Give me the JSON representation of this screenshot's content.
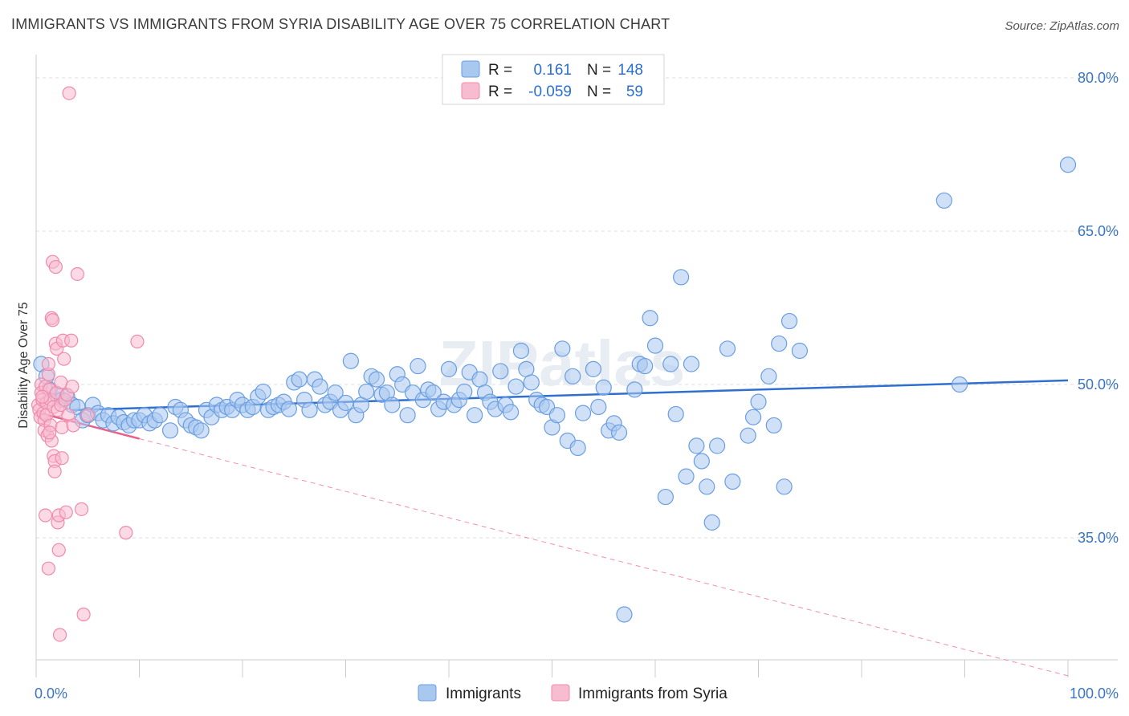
{
  "title": "IMMIGRANTS VS IMMIGRANTS FROM SYRIA DISABILITY AGE OVER 75 CORRELATION CHART",
  "source": "Source: ZipAtlas.com",
  "watermark": "ZIPatlas",
  "colors": {
    "blue": "#6a9ee0",
    "blue_fill": "#a9c8f0",
    "blue_line": "#2f6fd0",
    "pink": "#f08aaa",
    "pink_fill": "#f8bcd0",
    "pink_line": "#e8608c",
    "axis_text": "#3a75c4",
    "grid": "#dddddd"
  },
  "legend": {
    "rows": [
      {
        "r_label": "R =",
        "r_value": "0.161",
        "n_label": "N =",
        "n_value": "148"
      },
      {
        "r_label": "R =",
        "r_value": "-0.059",
        "n_label": "N =",
        "n_value": "59"
      }
    ]
  },
  "bottom_legend": [
    "Immigrants",
    "Immigrants from Syria"
  ],
  "chart_data": {
    "type": "scatter",
    "title": "IMMIGRANTS VS IMMIGRANTS FROM SYRIA DISABILITY AGE OVER 75 CORRELATION CHART",
    "xlabel": "",
    "ylabel": "Disability Age Over 75",
    "xlim": [
      0,
      100
    ],
    "ylim": [
      20,
      82
    ],
    "x_tick_labels": [
      "0.0%",
      "100.0%"
    ],
    "y_ticks": [
      35,
      50,
      65,
      80
    ],
    "y_tick_labels": [
      "35.0%",
      "50.0%",
      "65.0%",
      "80.0%"
    ],
    "grid": true,
    "legend_position": "top-center",
    "series": [
      {
        "name": "Immigrants",
        "r": 0.161,
        "n": 148,
        "trend": [
          [
            0,
            47.3
          ],
          [
            100,
            50.4
          ]
        ],
        "points": [
          [
            0.5,
            52
          ],
          [
            1,
            50.8
          ],
          [
            1.3,
            49.5
          ],
          [
            2,
            49
          ],
          [
            2.5,
            48.5
          ],
          [
            3,
            48.8
          ],
          [
            3.5,
            48
          ],
          [
            4,
            47.8
          ],
          [
            4.5,
            46.5
          ],
          [
            5,
            47
          ],
          [
            5.5,
            48
          ],
          [
            6,
            47.2
          ],
          [
            6.5,
            46.5
          ],
          [
            7,
            47
          ],
          [
            7.5,
            46.2
          ],
          [
            8,
            46.8
          ],
          [
            8.5,
            46.3
          ],
          [
            9,
            46
          ],
          [
            9.5,
            46.5
          ],
          [
            10,
            46.5
          ],
          [
            10.5,
            47
          ],
          [
            11,
            46.2
          ],
          [
            11.5,
            46.5
          ],
          [
            12,
            47
          ],
          [
            13,
            45.5
          ],
          [
            13.5,
            47.8
          ],
          [
            14,
            47.5
          ],
          [
            14.5,
            46.5
          ],
          [
            15,
            46
          ],
          [
            15.5,
            45.8
          ],
          [
            16,
            45.5
          ],
          [
            16.5,
            47.5
          ],
          [
            17,
            46.8
          ],
          [
            17.5,
            48
          ],
          [
            18,
            47.5
          ],
          [
            18.5,
            47.8
          ],
          [
            19,
            47.5
          ],
          [
            19.5,
            48.5
          ],
          [
            20,
            48
          ],
          [
            20.5,
            47.5
          ],
          [
            21,
            47.8
          ],
          [
            21.5,
            48.8
          ],
          [
            22,
            49.3
          ],
          [
            22.5,
            47.5
          ],
          [
            23,
            47.8
          ],
          [
            23.5,
            48
          ],
          [
            24,
            48.3
          ],
          [
            24.5,
            47.6
          ],
          [
            25,
            50.2
          ],
          [
            25.5,
            50.5
          ],
          [
            26,
            48.5
          ],
          [
            26.5,
            47.5
          ],
          [
            27,
            50.5
          ],
          [
            27.5,
            49.8
          ],
          [
            28,
            48
          ],
          [
            28.5,
            48.3
          ],
          [
            29,
            49.2
          ],
          [
            29.5,
            47.5
          ],
          [
            30,
            48.2
          ],
          [
            30.5,
            52.3
          ],
          [
            31,
            47
          ],
          [
            31.5,
            48
          ],
          [
            32,
            49.3
          ],
          [
            32.5,
            50.8
          ],
          [
            33,
            50.5
          ],
          [
            33.5,
            49
          ],
          [
            34,
            49.2
          ],
          [
            34.5,
            48
          ],
          [
            35,
            51
          ],
          [
            35.5,
            50
          ],
          [
            36,
            47
          ],
          [
            36.5,
            49.2
          ],
          [
            37,
            51.8
          ],
          [
            37.5,
            48.5
          ],
          [
            38,
            49.5
          ],
          [
            38.5,
            49.2
          ],
          [
            39,
            47.6
          ],
          [
            39.5,
            48.3
          ],
          [
            40,
            51.5
          ],
          [
            40.5,
            48
          ],
          [
            41,
            48.5
          ],
          [
            41.5,
            49.3
          ],
          [
            42,
            51.2
          ],
          [
            42.5,
            47
          ],
          [
            43,
            50.5
          ],
          [
            43.5,
            49.2
          ],
          [
            44,
            48.3
          ],
          [
            44.5,
            47.6
          ],
          [
            45,
            51.3
          ],
          [
            45.5,
            48
          ],
          [
            46,
            47.3
          ],
          [
            46.5,
            49.8
          ],
          [
            47,
            53.3
          ],
          [
            47.5,
            51.5
          ],
          [
            48,
            50.2
          ],
          [
            48.5,
            48.5
          ],
          [
            49,
            48
          ],
          [
            49.5,
            47.8
          ],
          [
            50,
            45.8
          ],
          [
            50.5,
            47
          ],
          [
            51,
            53.5
          ],
          [
            51.5,
            44.5
          ],
          [
            52,
            50.8
          ],
          [
            52.5,
            43.8
          ],
          [
            53,
            47.2
          ],
          [
            54,
            51.5
          ],
          [
            54.5,
            47.8
          ],
          [
            55,
            49.7
          ],
          [
            55.5,
            45.5
          ],
          [
            56,
            46.2
          ],
          [
            56.5,
            45.3
          ],
          [
            57,
            27.5
          ],
          [
            58,
            49.5
          ],
          [
            58.5,
            52
          ],
          [
            59,
            51.8
          ],
          [
            59.5,
            56.5
          ],
          [
            60,
            53.8
          ],
          [
            61,
            39
          ],
          [
            61.5,
            52
          ],
          [
            62,
            47.1
          ],
          [
            62.5,
            60.5
          ],
          [
            63,
            41
          ],
          [
            63.5,
            52
          ],
          [
            64,
            44
          ],
          [
            64.5,
            42.5
          ],
          [
            65,
            40
          ],
          [
            65.5,
            36.5
          ],
          [
            66,
            44
          ],
          [
            67,
            53.5
          ],
          [
            67.5,
            40.5
          ],
          [
            69,
            45
          ],
          [
            69.5,
            46.8
          ],
          [
            70,
            48.3
          ],
          [
            71,
            50.8
          ],
          [
            71.5,
            46
          ],
          [
            72,
            54
          ],
          [
            72.5,
            40
          ],
          [
            73,
            56.2
          ],
          [
            74,
            53.3
          ],
          [
            88,
            68
          ],
          [
            89.5,
            50
          ],
          [
            100,
            71.5
          ]
        ]
      },
      {
        "name": "Immigrants from Syria",
        "r": -0.059,
        "n": 59,
        "trend": [
          [
            0,
            47.3
          ],
          [
            10,
            44.7
          ]
        ],
        "trend_ext": [
          [
            10,
            44.7
          ],
          [
            100,
            21.5
          ]
        ],
        "points": [
          [
            0.2,
            48
          ],
          [
            0.3,
            47.5
          ],
          [
            0.4,
            46.8
          ],
          [
            0.5,
            50
          ],
          [
            0.5,
            49.2
          ],
          [
            0.6,
            48.5
          ],
          [
            0.7,
            47.2
          ],
          [
            0.8,
            46.5
          ],
          [
            0.8,
            45.5
          ],
          [
            0.9,
            49.8
          ],
          [
            1,
            48.2
          ],
          [
            1,
            47
          ],
          [
            1.1,
            45
          ],
          [
            1.2,
            51
          ],
          [
            1.2,
            52
          ],
          [
            1.3,
            49.5
          ],
          [
            1.4,
            48.5
          ],
          [
            1.4,
            46
          ],
          [
            1.5,
            44.5
          ],
          [
            1.5,
            56.5
          ],
          [
            1.6,
            62
          ],
          [
            1.6,
            56.3
          ],
          [
            1.7,
            47.8
          ],
          [
            1.7,
            43
          ],
          [
            1.8,
            42.5
          ],
          [
            1.8,
            41.5
          ],
          [
            1.9,
            61.5
          ],
          [
            1.9,
            54
          ],
          [
            2,
            53.5
          ],
          [
            2,
            49.2
          ],
          [
            2.1,
            47.5
          ],
          [
            2.1,
            36.5
          ],
          [
            2.2,
            37.2
          ],
          [
            2.2,
            33.8
          ],
          [
            2.3,
            25.5
          ],
          [
            2.4,
            50.2
          ],
          [
            2.4,
            48
          ],
          [
            2.5,
            45.8
          ],
          [
            2.6,
            54.3
          ],
          [
            2.7,
            52.5
          ],
          [
            2.8,
            48.5
          ],
          [
            2.9,
            37.5
          ],
          [
            3,
            49
          ],
          [
            3.1,
            47
          ],
          [
            3.2,
            78.5
          ],
          [
            3.4,
            54.3
          ],
          [
            3.5,
            49.8
          ],
          [
            3.6,
            46
          ],
          [
            4,
            60.8
          ],
          [
            4.4,
            37.8
          ],
          [
            4.6,
            27.5
          ],
          [
            1.2,
            32
          ],
          [
            0.9,
            37.2
          ],
          [
            2.5,
            42.8
          ],
          [
            1.3,
            45.3
          ],
          [
            0.6,
            48.8
          ],
          [
            5,
            47
          ],
          [
            8.7,
            35.5
          ],
          [
            9.8,
            54.2
          ]
        ]
      }
    ]
  }
}
